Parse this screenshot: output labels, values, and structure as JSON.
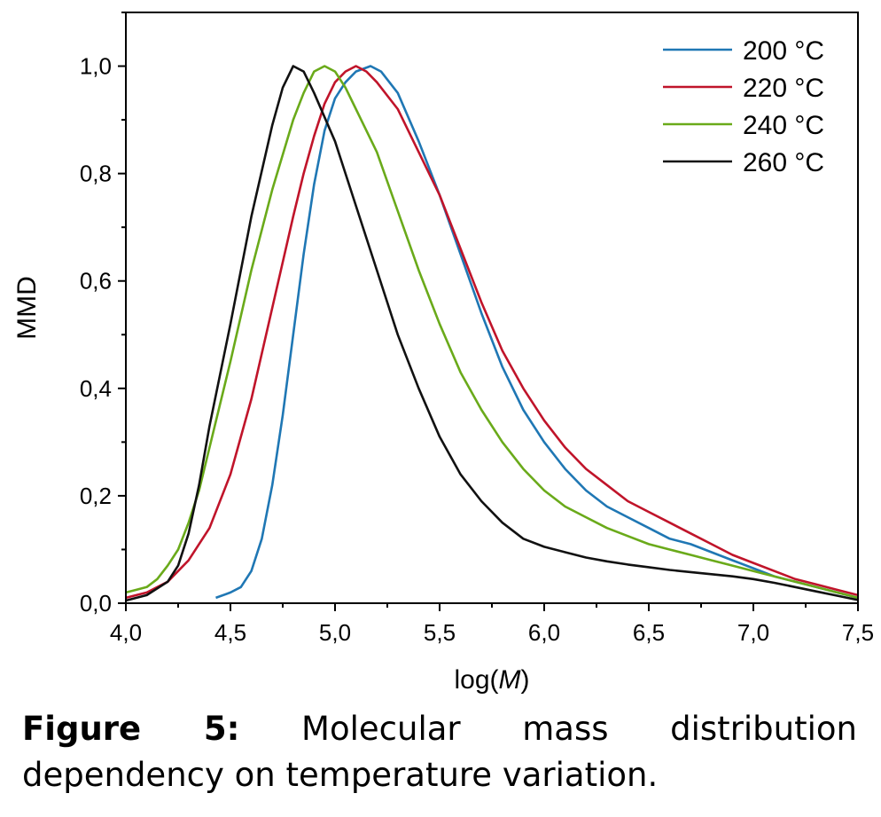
{
  "chart_data": {
    "type": "line",
    "xlabel_prefix": "log(",
    "xlabel_var": "M",
    "xlabel_suffix": ")",
    "ylabel": "MMD",
    "xlim": [
      4.0,
      7.5
    ],
    "ylim": [
      0.0,
      1.1
    ],
    "x_ticks": [
      4.0,
      4.5,
      5.0,
      5.5,
      6.0,
      6.5,
      7.0,
      7.5
    ],
    "x_tick_labels": [
      "4,0",
      "4,5",
      "5,0",
      "5,5",
      "6,0",
      "6,5",
      "7,0",
      "7,5"
    ],
    "y_ticks": [
      0.0,
      0.2,
      0.4,
      0.6,
      0.8,
      1.0
    ],
    "y_tick_labels": [
      "0,0",
      "0,2",
      "0,4",
      "0,6",
      "0,8",
      "1,0"
    ],
    "grid": false,
    "legend": "top-right",
    "series": [
      {
        "name": "200 °C",
        "color": "#1f77b4",
        "points": [
          [
            4.43,
            0.01
          ],
          [
            4.5,
            0.02
          ],
          [
            4.55,
            0.03
          ],
          [
            4.6,
            0.06
          ],
          [
            4.65,
            0.12
          ],
          [
            4.7,
            0.22
          ],
          [
            4.75,
            0.35
          ],
          [
            4.8,
            0.5
          ],
          [
            4.85,
            0.65
          ],
          [
            4.9,
            0.78
          ],
          [
            4.95,
            0.88
          ],
          [
            5.0,
            0.94
          ],
          [
            5.05,
            0.97
          ],
          [
            5.1,
            0.99
          ],
          [
            5.17,
            1.0
          ],
          [
            5.22,
            0.99
          ],
          [
            5.3,
            0.95
          ],
          [
            5.4,
            0.86
          ],
          [
            5.5,
            0.76
          ],
          [
            5.6,
            0.65
          ],
          [
            5.7,
            0.54
          ],
          [
            5.8,
            0.44
          ],
          [
            5.9,
            0.36
          ],
          [
            6.0,
            0.3
          ],
          [
            6.1,
            0.25
          ],
          [
            6.2,
            0.21
          ],
          [
            6.3,
            0.18
          ],
          [
            6.4,
            0.16
          ],
          [
            6.5,
            0.14
          ],
          [
            6.6,
            0.12
          ],
          [
            6.7,
            0.11
          ],
          [
            6.8,
            0.095
          ],
          [
            6.9,
            0.08
          ],
          [
            7.0,
            0.065
          ],
          [
            7.1,
            0.05
          ],
          [
            7.2,
            0.04
          ],
          [
            7.3,
            0.03
          ],
          [
            7.4,
            0.02
          ],
          [
            7.5,
            0.01
          ]
        ]
      },
      {
        "name": "220 °C",
        "color": "#c0142a",
        "points": [
          [
            4.0,
            0.01
          ],
          [
            4.1,
            0.02
          ],
          [
            4.2,
            0.04
          ],
          [
            4.3,
            0.08
          ],
          [
            4.4,
            0.14
          ],
          [
            4.5,
            0.24
          ],
          [
            4.6,
            0.38
          ],
          [
            4.7,
            0.55
          ],
          [
            4.8,
            0.72
          ],
          [
            4.85,
            0.8
          ],
          [
            4.9,
            0.87
          ],
          [
            4.95,
            0.93
          ],
          [
            5.0,
            0.97
          ],
          [
            5.05,
            0.99
          ],
          [
            5.1,
            1.0
          ],
          [
            5.15,
            0.99
          ],
          [
            5.2,
            0.97
          ],
          [
            5.3,
            0.92
          ],
          [
            5.4,
            0.84
          ],
          [
            5.5,
            0.76
          ],
          [
            5.6,
            0.66
          ],
          [
            5.7,
            0.56
          ],
          [
            5.8,
            0.47
          ],
          [
            5.9,
            0.4
          ],
          [
            6.0,
            0.34
          ],
          [
            6.1,
            0.29
          ],
          [
            6.2,
            0.25
          ],
          [
            6.3,
            0.22
          ],
          [
            6.4,
            0.19
          ],
          [
            6.5,
            0.17
          ],
          [
            6.6,
            0.15
          ],
          [
            6.7,
            0.13
          ],
          [
            6.8,
            0.11
          ],
          [
            6.9,
            0.09
          ],
          [
            7.0,
            0.075
          ],
          [
            7.1,
            0.06
          ],
          [
            7.2,
            0.045
          ],
          [
            7.3,
            0.035
          ],
          [
            7.4,
            0.025
          ],
          [
            7.5,
            0.015
          ]
        ]
      },
      {
        "name": "240 °C",
        "color": "#6aaa1a",
        "points": [
          [
            4.0,
            0.02
          ],
          [
            4.05,
            0.025
          ],
          [
            4.1,
            0.03
          ],
          [
            4.15,
            0.045
          ],
          [
            4.2,
            0.07
          ],
          [
            4.25,
            0.1
          ],
          [
            4.3,
            0.15
          ],
          [
            4.35,
            0.21
          ],
          [
            4.4,
            0.29
          ],
          [
            4.5,
            0.45
          ],
          [
            4.6,
            0.62
          ],
          [
            4.7,
            0.77
          ],
          [
            4.8,
            0.9
          ],
          [
            4.85,
            0.95
          ],
          [
            4.9,
            0.99
          ],
          [
            4.95,
            1.0
          ],
          [
            5.0,
            0.99
          ],
          [
            5.05,
            0.96
          ],
          [
            5.1,
            0.92
          ],
          [
            5.2,
            0.84
          ],
          [
            5.3,
            0.73
          ],
          [
            5.4,
            0.62
          ],
          [
            5.5,
            0.52
          ],
          [
            5.6,
            0.43
          ],
          [
            5.7,
            0.36
          ],
          [
            5.8,
            0.3
          ],
          [
            5.9,
            0.25
          ],
          [
            6.0,
            0.21
          ],
          [
            6.1,
            0.18
          ],
          [
            6.2,
            0.16
          ],
          [
            6.3,
            0.14
          ],
          [
            6.4,
            0.125
          ],
          [
            6.5,
            0.11
          ],
          [
            6.6,
            0.1
          ],
          [
            6.7,
            0.09
          ],
          [
            6.8,
            0.08
          ],
          [
            6.9,
            0.07
          ],
          [
            7.0,
            0.06
          ],
          [
            7.1,
            0.05
          ],
          [
            7.2,
            0.04
          ],
          [
            7.3,
            0.03
          ],
          [
            7.4,
            0.02
          ],
          [
            7.5,
            0.01
          ]
        ]
      },
      {
        "name": "260 °C",
        "color": "#111111",
        "points": [
          [
            4.0,
            0.005
          ],
          [
            4.1,
            0.015
          ],
          [
            4.2,
            0.04
          ],
          [
            4.25,
            0.07
          ],
          [
            4.3,
            0.13
          ],
          [
            4.35,
            0.22
          ],
          [
            4.4,
            0.33
          ],
          [
            4.5,
            0.52
          ],
          [
            4.6,
            0.72
          ],
          [
            4.7,
            0.89
          ],
          [
            4.75,
            0.96
          ],
          [
            4.8,
            1.0
          ],
          [
            4.85,
            0.99
          ],
          [
            4.9,
            0.95
          ],
          [
            5.0,
            0.86
          ],
          [
            5.1,
            0.74
          ],
          [
            5.2,
            0.62
          ],
          [
            5.3,
            0.5
          ],
          [
            5.4,
            0.4
          ],
          [
            5.5,
            0.31
          ],
          [
            5.6,
            0.24
          ],
          [
            5.7,
            0.19
          ],
          [
            5.8,
            0.15
          ],
          [
            5.9,
            0.12
          ],
          [
            6.0,
            0.105
          ],
          [
            6.1,
            0.095
          ],
          [
            6.2,
            0.085
          ],
          [
            6.3,
            0.078
          ],
          [
            6.4,
            0.072
          ],
          [
            6.5,
            0.067
          ],
          [
            6.6,
            0.062
          ],
          [
            6.7,
            0.058
          ],
          [
            6.8,
            0.054
          ],
          [
            6.9,
            0.05
          ],
          [
            7.0,
            0.045
          ],
          [
            7.1,
            0.038
          ],
          [
            7.2,
            0.03
          ],
          [
            7.3,
            0.022
          ],
          [
            7.4,
            0.014
          ],
          [
            7.5,
            0.006
          ]
        ]
      }
    ]
  },
  "caption": {
    "label": "Figure 5:",
    "text": " Molecular mass distribution dependency on temperature variation."
  }
}
